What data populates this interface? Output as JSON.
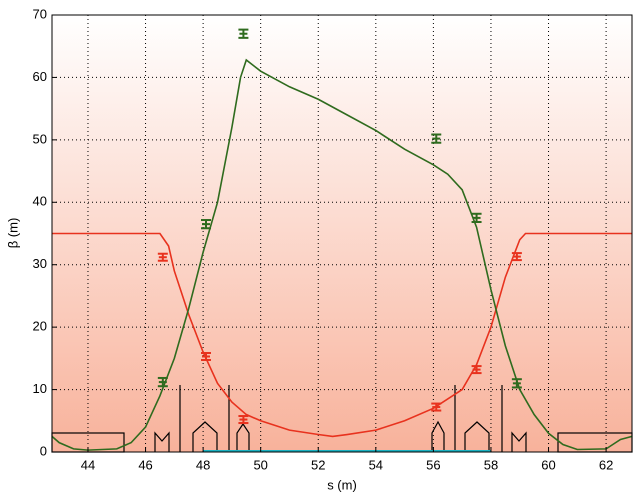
{
  "chart_data": {
    "type": "line",
    "xlabel": "s (m)",
    "ylabel": "β (m)",
    "xlim": [
      42.75,
      62.9
    ],
    "xticks": [
      44,
      46,
      48,
      50,
      52,
      54,
      56,
      58,
      60,
      62
    ],
    "ylim": [
      0,
      70
    ],
    "yticks": [
      0,
      10,
      20,
      30,
      40,
      50,
      60,
      70
    ],
    "grid": true,
    "series": [
      {
        "color": "#e8321e",
        "x": [
          42.75,
          46.5,
          46.8,
          47,
          47.5,
          48,
          48.5,
          49,
          49.5,
          50,
          51,
          52,
          52.5,
          53,
          54,
          55,
          56,
          57,
          57.5,
          58,
          58.5,
          59,
          59.2,
          62.9
        ],
        "values": [
          35,
          35,
          33,
          29,
          22,
          16,
          11,
          8,
          6,
          5,
          3.5,
          2.8,
          2.5,
          2.8,
          3.5,
          5,
          7,
          10,
          14,
          20,
          28,
          34,
          35,
          35
        ]
      },
      {
        "color": "#2f6b1e",
        "x": [
          42.75,
          43,
          43.5,
          44,
          45,
          45.5,
          46,
          46.5,
          47,
          47.5,
          48,
          48.5,
          49,
          49.3,
          49.5,
          50,
          51,
          52,
          53,
          54,
          55,
          56,
          56.5,
          57,
          57.5,
          58,
          58.5,
          59,
          59.5,
          60,
          60.5,
          61,
          62,
          62.5,
          62.9
        ],
        "values": [
          2.5,
          1.5,
          0.5,
          0.3,
          0.5,
          1.5,
          4,
          9,
          15,
          23,
          32,
          40,
          52,
          60,
          62.8,
          61,
          58.5,
          56.5,
          54,
          51.5,
          48.5,
          46,
          44.5,
          42,
          36,
          26,
          17,
          10,
          6,
          3,
          1.2,
          0.4,
          0.5,
          2,
          2.5
        ]
      },
      {
        "color": "#1ab0c0",
        "x": [
          48,
          58
        ],
        "values": [
          0.2,
          0.2
        ]
      }
    ],
    "measurements": [
      {
        "color": "#2f6b1e",
        "x": [
          46.6,
          48.1,
          49.4,
          56.1,
          57.5,
          58.9
        ],
        "values": [
          11.2,
          36.5,
          67,
          50.2,
          37.5,
          11
        ],
        "errors": [
          0.5,
          0.5,
          0.5,
          0.5,
          0.5,
          0.5
        ]
      },
      {
        "color": "#e8321e",
        "x": [
          46.6,
          48.1,
          49.4,
          56.1,
          57.5,
          58.9
        ],
        "values": [
          31.2,
          15.3,
          5.2,
          7.2,
          13.2,
          31.3
        ],
        "errors": [
          0.4,
          0.4,
          0.4,
          0.4,
          0.4,
          0.4
        ]
      }
    ]
  }
}
